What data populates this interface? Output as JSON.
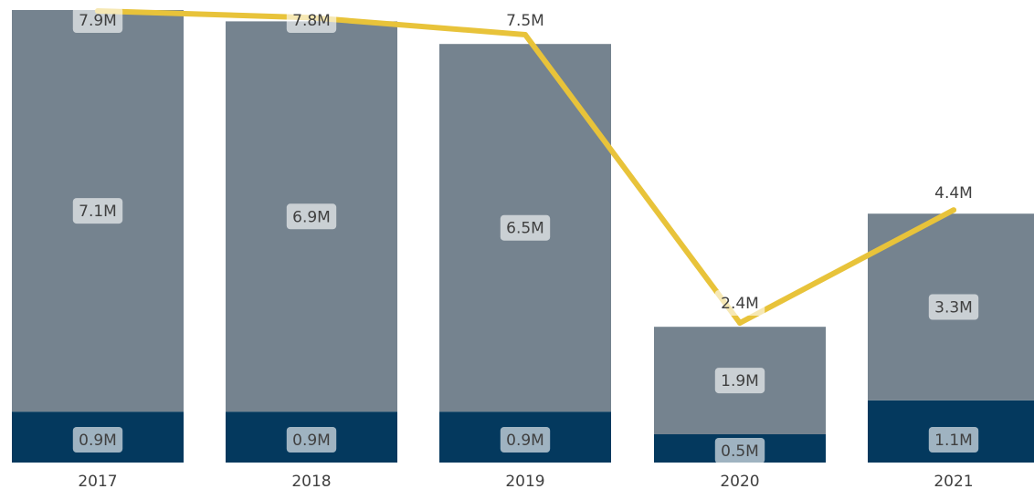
{
  "chart_data": {
    "type": "bar",
    "stacked": true,
    "categories": [
      "2017",
      "2018",
      "2019",
      "2020",
      "2021"
    ],
    "series": [
      {
        "values": [
          0.9,
          0.9,
          0.9,
          0.5,
          1.1
        ],
        "labels": [
          "0.9M",
          "0.9M",
          "0.9M",
          "0.5M",
          "1.1M"
        ],
        "color": "#04395E"
      },
      {
        "values": [
          7.1,
          6.9,
          6.5,
          1.9,
          3.3
        ],
        "labels": [
          "7.1M",
          "6.9M",
          "6.5M",
          "1.9M",
          "3.3M"
        ],
        "color": "#75838F"
      }
    ],
    "line": {
      "values": [
        7.9,
        7.8,
        7.5,
        2.4,
        4.4
      ],
      "labels": [
        "7.9M",
        "7.8M",
        "7.5M",
        "2.4M",
        "4.4M"
      ],
      "color": "#E8C33A"
    },
    "ylim": [
      0,
      8
    ],
    "grid": false,
    "legend": false
  }
}
